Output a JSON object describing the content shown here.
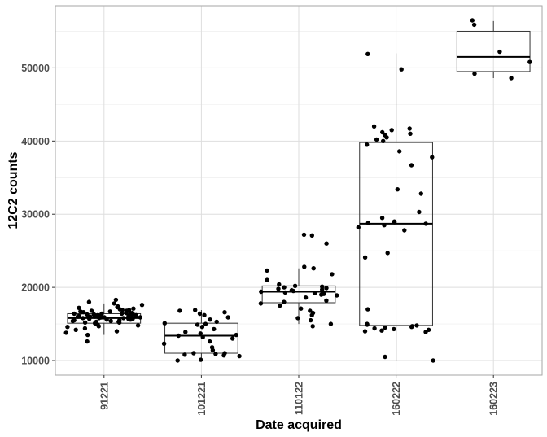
{
  "chart_data": {
    "type": "boxplot",
    "xlabel": "Date acquired",
    "ylabel": "12C2 counts",
    "ylim": [
      8000,
      58500
    ],
    "y_ticks": [
      10000,
      20000,
      30000,
      40000,
      50000
    ],
    "grid": true,
    "theme": "light",
    "categories": [
      "91221",
      "101221",
      "110122",
      "160222",
      "160223"
    ],
    "boxes": [
      {
        "category": "91221",
        "min": 13500,
        "q1": 15100,
        "median": 15800,
        "q3": 16400,
        "max": 17800
      },
      {
        "category": "101221",
        "min": 10000,
        "q1": 11000,
        "median": 13400,
        "q3": 15100,
        "max": 16900
      },
      {
        "category": "110122",
        "min": 15000,
        "q1": 17900,
        "median": 19400,
        "q3": 20200,
        "max": 22600
      },
      {
        "category": "160222",
        "min": 10000,
        "q1": 14800,
        "median": 28700,
        "q3": 39800,
        "max": 52000
      },
      {
        "category": "160223",
        "min": 48600,
        "q1": 49500,
        "median": 51500,
        "q3": 55000,
        "max": 56400
      }
    ],
    "points": [
      {
        "category": "91221",
        "values": [
          18300,
          18000,
          17800,
          17600,
          17400,
          17300,
          17200,
          17100,
          17000,
          16900,
          16900,
          16800,
          16800,
          16700,
          16700,
          16600,
          16600,
          16500,
          16500,
          16500,
          16400,
          16400,
          16400,
          16300,
          16300,
          16300,
          16200,
          16200,
          16200,
          16100,
          16100,
          16100,
          16000,
          16000,
          16000,
          15900,
          15900,
          15900,
          15800,
          15800,
          15800,
          15700,
          15700,
          15700,
          15600,
          15600,
          15500,
          15500,
          15400,
          15400,
          15300,
          15300,
          15200,
          15200,
          15100,
          15000,
          14900,
          14800,
          14700,
          14600,
          14400,
          14200,
          14000,
          13800,
          13500,
          12600
        ]
      },
      {
        "category": "101221",
        "values": [
          16900,
          16800,
          16600,
          16400,
          16200,
          15900,
          15600,
          15300,
          15100,
          15000,
          14900,
          14600,
          14300,
          13900,
          13700,
          13500,
          13400,
          13200,
          13000,
          12600,
          12300,
          11800,
          11400,
          11000,
          11000,
          10900,
          10800,
          10700,
          10600,
          10100,
          10000
        ]
      },
      {
        "category": "110122",
        "values": [
          27200,
          27100,
          26000,
          22800,
          22600,
          22300,
          21800,
          21000,
          20400,
          20200,
          20100,
          20000,
          19900,
          19800,
          19700,
          19600,
          19500,
          19400,
          19300,
          19200,
          19100,
          19000,
          18900,
          18600,
          18200,
          18000,
          17800,
          17500,
          17100,
          16800,
          16500,
          16200,
          15800,
          15500,
          15000,
          14700
        ]
      },
      {
        "category": "160222",
        "values": [
          51900,
          49800,
          42000,
          41700,
          41500,
          41200,
          41000,
          40800,
          40500,
          40200,
          40000,
          39500,
          38600,
          37800,
          36700,
          33400,
          32800,
          30300,
          29500,
          29000,
          28900,
          28800,
          28700,
          28500,
          28200,
          27800,
          24700,
          24100,
          17000,
          15000,
          14900,
          14800,
          14700,
          14600,
          14500,
          14400,
          14300,
          14200,
          14100,
          14000,
          13900,
          10500,
          10000
        ]
      },
      {
        "category": "160223",
        "values": [
          56500,
          55900,
          52200,
          50800,
          49200,
          48600
        ]
      }
    ]
  }
}
